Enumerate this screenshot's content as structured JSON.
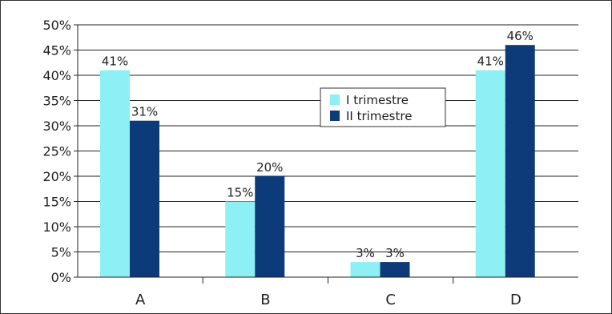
{
  "chart_data": {
    "type": "bar",
    "categories": [
      "A",
      "B",
      "C",
      "D"
    ],
    "series": [
      {
        "name": "I trimestre",
        "values": [
          41,
          15,
          3,
          41
        ],
        "labels": [
          "41%",
          "15%",
          "3%",
          "41%"
        ],
        "color": "#8df0f4"
      },
      {
        "name": "II trimestre",
        "values": [
          31,
          20,
          3,
          46
        ],
        "labels": [
          "31%",
          "20%",
          "3%",
          "46%"
        ],
        "color": "#0d3a78"
      }
    ],
    "y_ticks": [
      "0%",
      "5%",
      "10%",
      "15%",
      "20%",
      "25%",
      "30%",
      "35%",
      "40%",
      "45%",
      "50%"
    ],
    "ylim": [
      0,
      50
    ],
    "grid": true,
    "legend_position": "center-top"
  }
}
